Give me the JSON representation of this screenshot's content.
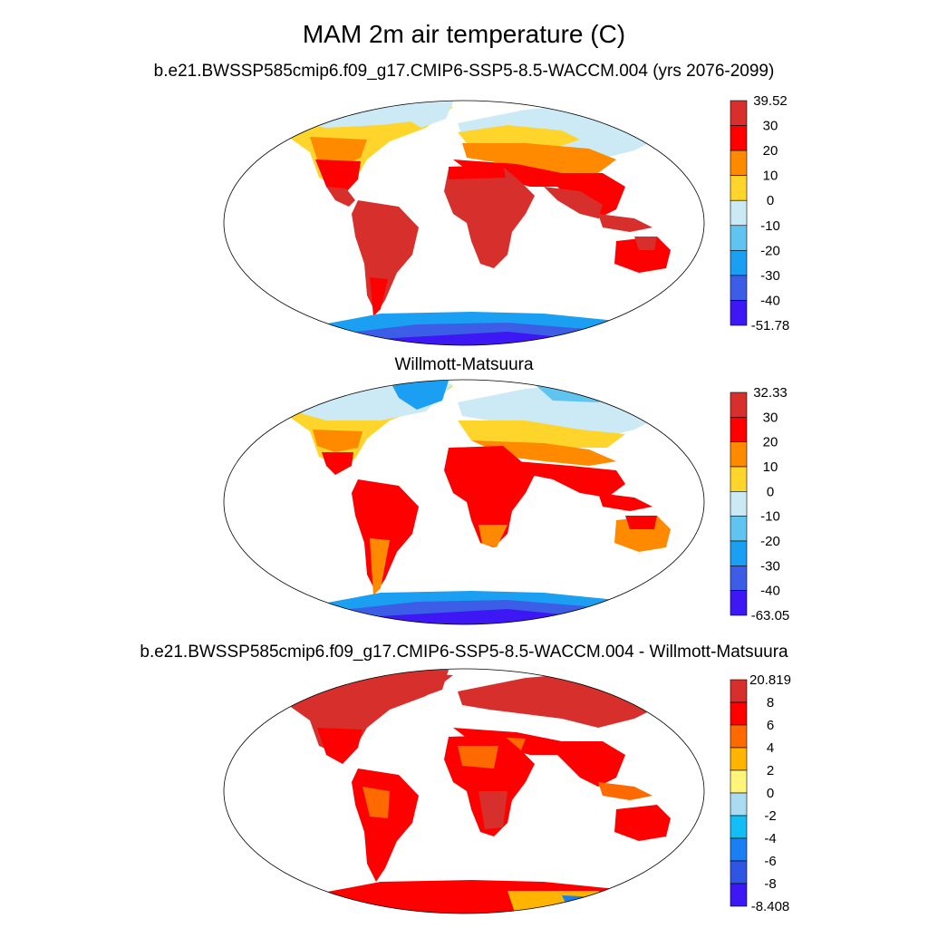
{
  "title": "MAM 2m air temperature (C)",
  "panels": [
    {
      "subtitle": "b.e21.BWSSP585cmip6.f09_g17.CMIP6-SSP5-8.5-WACCM.004 (yrs 2076-2099)",
      "colorbar": {
        "labels": [
          "39.52",
          "30",
          "20",
          "10",
          "0",
          "-10",
          "-20",
          "-30",
          "-40",
          "-51.78"
        ],
        "colors": [
          "#d7302c",
          "#fe0000",
          "#ff8a00",
          "#ffd42b",
          "#cce9f6",
          "#5fc4f0",
          "#1a9ff2",
          "#3c5ee6",
          "#3d17f4"
        ]
      }
    },
    {
      "subtitle": "Willmott-Matsuura",
      "colorbar": {
        "labels": [
          "32.33",
          "30",
          "20",
          "10",
          "0",
          "-10",
          "-20",
          "-30",
          "-40",
          "-63.05"
        ],
        "colors": [
          "#d7302c",
          "#fe0000",
          "#ff8a00",
          "#ffd42b",
          "#cce9f6",
          "#5fc4f0",
          "#1a9ff2",
          "#3c5ee6",
          "#3d17f4"
        ]
      }
    },
    {
      "subtitle": "b.e21.BWSSP585cmip6.f09_g17.CMIP6-SSP5-8.5-WACCM.004 - Willmott-Matsuura",
      "colorbar": {
        "labels": [
          "20.819",
          "8",
          "6",
          "4",
          "2",
          "0",
          "-2",
          "-4",
          "-6",
          "-8",
          "-8.408"
        ],
        "colors": [
          "#d7302c",
          "#fe0000",
          "#ff6a00",
          "#ffb400",
          "#fff57a",
          "#a9dcf3",
          "#13bdf5",
          "#1a7ff2",
          "#2f55e4",
          "#3d17f4"
        ]
      }
    }
  ]
}
